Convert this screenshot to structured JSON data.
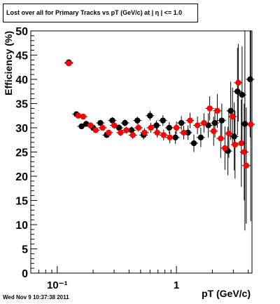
{
  "title": "Lost over all for Primary Tracks vs pT (GeV/c) at |  η | <= 1.0",
  "footer": "Wed Nov  9 10:37:38 2011",
  "chart_data": {
    "type": "scatter",
    "title": "Lost over all for Primary Tracks vs pT (GeV/c) at |  η | <= 1.0",
    "xlabel": "pT (GeV/c)",
    "ylabel": "Efficiency (%)",
    "xscale": "log",
    "xlim": [
      0.06,
      4.3
    ],
    "ylim": [
      0,
      50
    ],
    "yticks": [
      0,
      5,
      10,
      15,
      20,
      25,
      30,
      35,
      40,
      45,
      50
    ],
    "ytick_labels": [
      "0",
      "5",
      "10",
      "15",
      "20",
      "25",
      "30",
      "35",
      "40",
      "45",
      "50"
    ],
    "xticks": [
      0.1,
      1
    ],
    "xtick_labels": [
      "10⁻¹",
      "1"
    ],
    "grid": false,
    "legend": "none",
    "series": [
      {
        "color": "#000000",
        "points": [
          {
            "x": 0.125,
            "y": 43.5,
            "err": 0.5
          },
          {
            "x": 0.145,
            "y": 32.8,
            "err": 0.5
          },
          {
            "x": 0.16,
            "y": 30.3,
            "err": 0.5
          },
          {
            "x": 0.175,
            "y": 30.8,
            "err": 0.5
          },
          {
            "x": 0.2,
            "y": 30.0,
            "err": 0.6
          },
          {
            "x": 0.23,
            "y": 31.0,
            "err": 0.6
          },
          {
            "x": 0.26,
            "y": 28.5,
            "err": 0.6
          },
          {
            "x": 0.29,
            "y": 31.5,
            "err": 0.7
          },
          {
            "x": 0.33,
            "y": 30.0,
            "err": 0.7
          },
          {
            "x": 0.37,
            "y": 31.0,
            "err": 0.7
          },
          {
            "x": 0.42,
            "y": 29.5,
            "err": 0.8
          },
          {
            "x": 0.47,
            "y": 31.5,
            "err": 0.8
          },
          {
            "x": 0.53,
            "y": 28.5,
            "err": 0.9
          },
          {
            "x": 0.6,
            "y": 32.5,
            "err": 1.0
          },
          {
            "x": 0.68,
            "y": 30.5,
            "err": 1.0
          },
          {
            "x": 0.77,
            "y": 31.5,
            "err": 1.1
          },
          {
            "x": 0.87,
            "y": 30.0,
            "err": 1.2
          },
          {
            "x": 0.98,
            "y": 28.0,
            "err": 1.3
          },
          {
            "x": 1.1,
            "y": 31.0,
            "err": 1.4
          },
          {
            "x": 1.25,
            "y": 29.0,
            "err": 1.5
          },
          {
            "x": 1.4,
            "y": 26.8,
            "err": 1.8
          },
          {
            "x": 1.6,
            "y": 28.0,
            "err": 2.0
          },
          {
            "x": 1.85,
            "y": 30.5,
            "err": 2.5
          },
          {
            "x": 2.1,
            "y": 31.0,
            "err": 3.0
          },
          {
            "x": 2.4,
            "y": 31.5,
            "err": 3.5
          },
          {
            "x": 2.7,
            "y": 25.2,
            "err": 5.0
          },
          {
            "x": 2.85,
            "y": 33.5,
            "err": 6.0
          },
          {
            "x": 3.05,
            "y": 28.2,
            "err": 7.0
          },
          {
            "x": 3.25,
            "y": 37.5,
            "err": 9.0
          },
          {
            "x": 3.55,
            "y": 36.8,
            "err": 10.0
          },
          {
            "x": 3.75,
            "y": 30.8,
            "err": 22.0
          },
          {
            "x": 4.15,
            "y": 40.0,
            "err": 12.0
          }
        ]
      },
      {
        "color": "#ff0000",
        "points": [
          {
            "x": 0.125,
            "y": 43.3,
            "err": 0.5
          },
          {
            "x": 0.15,
            "y": 32.5,
            "err": 0.5
          },
          {
            "x": 0.165,
            "y": 32.3,
            "err": 0.5
          },
          {
            "x": 0.19,
            "y": 30.5,
            "err": 0.6
          },
          {
            "x": 0.21,
            "y": 29.5,
            "err": 0.6
          },
          {
            "x": 0.24,
            "y": 30.0,
            "err": 0.6
          },
          {
            "x": 0.27,
            "y": 29.0,
            "err": 0.6
          },
          {
            "x": 0.3,
            "y": 30.5,
            "err": 0.7
          },
          {
            "x": 0.34,
            "y": 29.0,
            "err": 0.7
          },
          {
            "x": 0.38,
            "y": 29.5,
            "err": 0.7
          },
          {
            "x": 0.43,
            "y": 28.5,
            "err": 0.8
          },
          {
            "x": 0.48,
            "y": 30.0,
            "err": 0.8
          },
          {
            "x": 0.54,
            "y": 29.0,
            "err": 0.9
          },
          {
            "x": 0.61,
            "y": 30.0,
            "err": 1.0
          },
          {
            "x": 0.69,
            "y": 29.0,
            "err": 1.0
          },
          {
            "x": 0.78,
            "y": 28.5,
            "err": 1.1
          },
          {
            "x": 0.88,
            "y": 28.0,
            "err": 1.2
          },
          {
            "x": 1.0,
            "y": 30.0,
            "err": 1.3
          },
          {
            "x": 1.15,
            "y": 29.0,
            "err": 1.4
          },
          {
            "x": 1.3,
            "y": 31.5,
            "err": 1.6
          },
          {
            "x": 1.5,
            "y": 30.5,
            "err": 1.8
          },
          {
            "x": 1.7,
            "y": 31.0,
            "err": 2.0
          },
          {
            "x": 1.9,
            "y": 34.0,
            "err": 2.5
          },
          {
            "x": 2.05,
            "y": 29.3,
            "err": 3.0
          },
          {
            "x": 2.2,
            "y": 33.5,
            "err": 3.5
          },
          {
            "x": 2.35,
            "y": 27.8,
            "err": 4.0
          },
          {
            "x": 2.55,
            "y": 25.8,
            "err": 4.5
          },
          {
            "x": 2.75,
            "y": 28.8,
            "err": 5.0
          },
          {
            "x": 2.95,
            "y": 32.3,
            "err": 6.0
          },
          {
            "x": 3.1,
            "y": 26.5,
            "err": 7.0
          },
          {
            "x": 3.3,
            "y": 39.3,
            "err": 8.0
          },
          {
            "x": 3.5,
            "y": 26.8,
            "err": 9.0
          },
          {
            "x": 3.7,
            "y": 25.0,
            "err": 10.0
          },
          {
            "x": 3.85,
            "y": 22.2,
            "err": 12.0
          },
          {
            "x": 4.2,
            "y": 30.7,
            "err": 20.0
          }
        ]
      }
    ]
  }
}
